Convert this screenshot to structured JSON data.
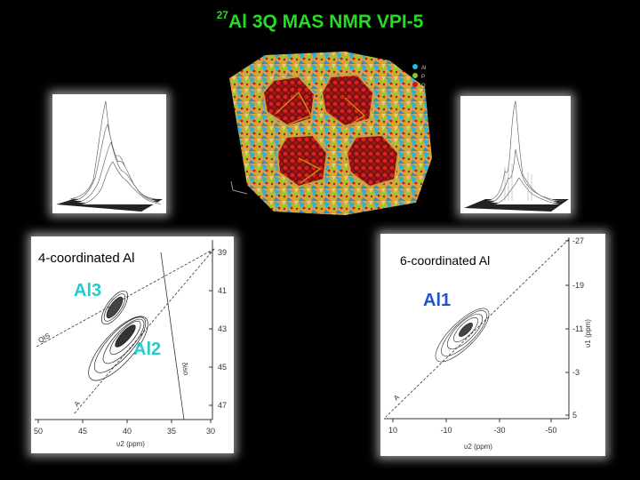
{
  "title": {
    "superscript": "27",
    "main": "Al 3Q MAS NMR VPI-5"
  },
  "structure_legend": {
    "items": [
      "Al",
      "P",
      "O"
    ],
    "colors": [
      "#22bbee",
      "#88cc22",
      "#dd1111"
    ]
  },
  "left_spectrum": {
    "coordination_label": "4-coordinated Al",
    "site_labels": [
      "Al3",
      "Al2"
    ],
    "site_label_color": "#22cccc",
    "x_axis_ticks": [
      "50",
      "45",
      "40",
      "35",
      "30"
    ],
    "x_axis_label": "υ2 (ppm)",
    "y_axis_ticks": [
      "39",
      "41",
      "43",
      "45",
      "47"
    ],
    "line_labels": [
      "QIS",
      "A",
      "δiso"
    ]
  },
  "right_spectrum": {
    "coordination_label": "6-coordinated Al",
    "site_labels": [
      "Al1"
    ],
    "site_label_color": "#2255cc",
    "x_axis_ticks": [
      "10",
      "-10",
      "-30",
      "-50"
    ],
    "x_axis_label": "υ2 (ppm)",
    "y_axis_ticks": [
      "-27",
      "-19",
      "-11",
      "-3",
      "5"
    ],
    "y_axis_label": "υ1 (ppm)",
    "line_labels": [
      "A"
    ]
  }
}
